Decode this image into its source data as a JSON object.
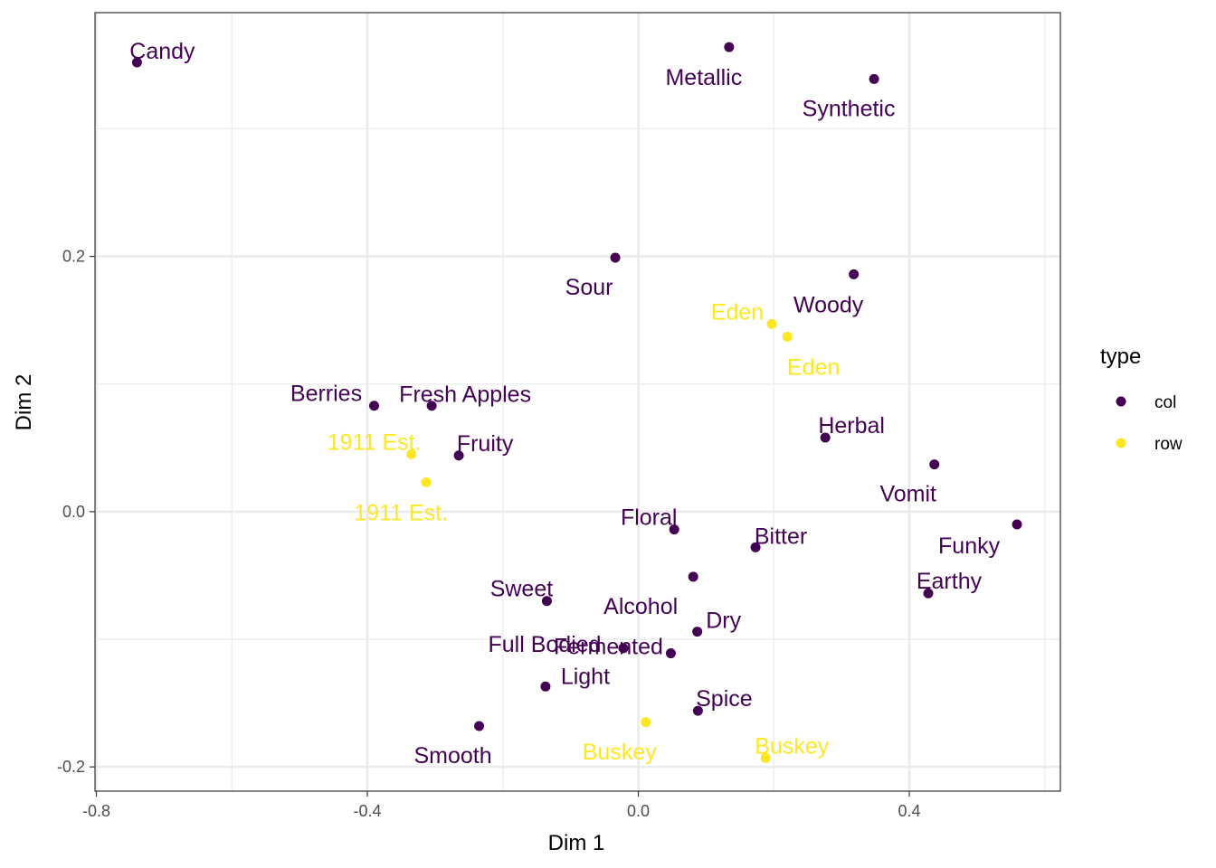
{
  "chart_data": {
    "type": "scatter",
    "xlabel": "Dim 1",
    "ylabel": "Dim 2",
    "xlim": [
      -0.802,
      0.623
    ],
    "ylim": [
      -0.219,
      0.391
    ],
    "x_ticks": [
      -0.8,
      -0.4,
      0.0,
      0.4
    ],
    "x_tick_labels": [
      "-0.8",
      "-0.4",
      "0.0",
      "0.4"
    ],
    "y_ticks": [
      -0.2,
      0.0,
      0.2
    ],
    "y_tick_labels": [
      "-0.2",
      "0.0",
      "0.2"
    ],
    "grid": true,
    "legend": {
      "title": "type",
      "position": "right",
      "entries": [
        {
          "name": "col",
          "color": "#440154"
        },
        {
          "name": "row",
          "color": "#FDE725"
        }
      ]
    },
    "series": [
      {
        "name": "col",
        "color": "#440154",
        "points": [
          {
            "label": "Candy",
            "x": -0.74,
            "y": 0.352
          },
          {
            "label": "Metallic",
            "x": 0.134,
            "y": 0.364
          },
          {
            "label": "Synthetic",
            "x": 0.348,
            "y": 0.339
          },
          {
            "label": "Sour",
            "x": -0.034,
            "y": 0.199
          },
          {
            "label": "Woody",
            "x": 0.318,
            "y": 0.186
          },
          {
            "label": "Berries",
            "x": -0.39,
            "y": 0.083
          },
          {
            "label": "Fresh Apples",
            "x": -0.305,
            "y": 0.083
          },
          {
            "label": "Fruity",
            "x": -0.265,
            "y": 0.044
          },
          {
            "label": "Herbal",
            "x": 0.276,
            "y": 0.058
          },
          {
            "label": "Vomit",
            "x": 0.437,
            "y": 0.037
          },
          {
            "label": "Funky",
            "x": 0.559,
            "y": -0.01
          },
          {
            "label": "Floral",
            "x": 0.053,
            "y": -0.014
          },
          {
            "label": "Bitter",
            "x": 0.173,
            "y": -0.028
          },
          {
            "label": "Earthy",
            "x": 0.428,
            "y": -0.064
          },
          {
            "label": "Alcohol",
            "x": 0.081,
            "y": -0.051
          },
          {
            "label": "Sweet",
            "x": -0.135,
            "y": -0.07
          },
          {
            "label": "Dry",
            "x": 0.087,
            "y": -0.094
          },
          {
            "label": "Full Bodied",
            "x": -0.022,
            "y": -0.107
          },
          {
            "label": "Fermented",
            "x": 0.048,
            "y": -0.111
          },
          {
            "label": "Light",
            "x": -0.137,
            "y": -0.137
          },
          {
            "label": "Spice",
            "x": 0.088,
            "y": -0.156
          },
          {
            "label": "Smooth",
            "x": -0.235,
            "y": -0.168
          }
        ]
      },
      {
        "name": "row",
        "color": "#FDE725",
        "points": [
          {
            "label": "Eden",
            "x": 0.197,
            "y": 0.147
          },
          {
            "label": "Eden",
            "x": 0.22,
            "y": 0.137
          },
          {
            "label": "1911 Est.",
            "x": -0.335,
            "y": 0.045
          },
          {
            "label": "1911 Est.",
            "x": -0.313,
            "y": 0.023
          },
          {
            "label": "Buskey",
            "x": 0.011,
            "y": -0.165
          },
          {
            "label": "Buskey",
            "x": 0.188,
            "y": -0.193
          }
        ]
      }
    ]
  }
}
